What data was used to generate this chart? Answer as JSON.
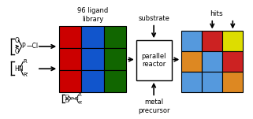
{
  "title": "96 ligand\nlibrary",
  "hits_label": "hits",
  "substrate_label": "substrate",
  "metal_label": "metal\nprecursor",
  "reactor_label": "parallel\nreactor",
  "grid1_colors": [
    [
      "#cc0000",
      "#1155cc",
      "#116600"
    ],
    [
      "#cc0000",
      "#1155cc",
      "#116600"
    ],
    [
      "#cc0000",
      "#1155cc",
      "#116600"
    ]
  ],
  "grid2_colors": [
    [
      "#5599dd",
      "#cc2222",
      "#dddd00"
    ],
    [
      "#dd8822",
      "#5599dd",
      "#cc2222"
    ],
    [
      "#5599dd",
      "#5599dd",
      "#dd8822"
    ]
  ],
  "figsize": [
    3.21,
    1.51
  ],
  "dpi": 100
}
